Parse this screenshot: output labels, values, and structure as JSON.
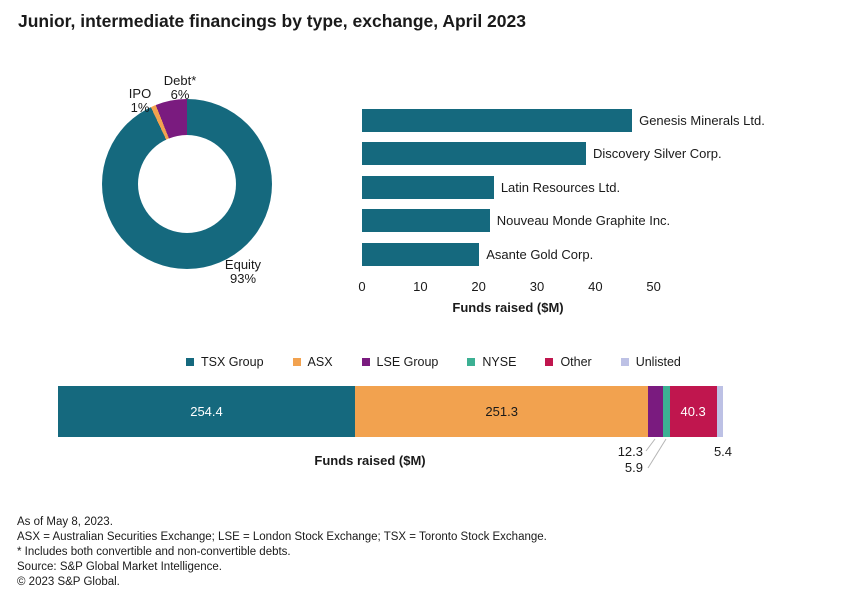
{
  "title": "Junior, intermediate financings by type, exchange, April 2023",
  "colors": {
    "teal": "#15697e",
    "orange": "#f2a24f",
    "purple": "#7a1b7f",
    "green": "#3cb093",
    "crimson": "#c0164e",
    "lavender": "#bdc1e5",
    "text": "#1a1a1a",
    "leader": "#b5b5b5"
  },
  "chart_data": [
    {
      "name": "financings-by-type-donut",
      "type": "pie",
      "subtype": "donut",
      "slices": [
        {
          "label": "Equity",
          "pct": 93,
          "pct_label": "93%",
          "color_key": "teal"
        },
        {
          "label": "IPO",
          "pct": 1,
          "pct_label": "1%",
          "color_key": "orange"
        },
        {
          "label": "Debt*",
          "pct": 6,
          "pct_label": "6%",
          "color_key": "purple"
        }
      ]
    },
    {
      "name": "top-financings-bar",
      "type": "bar",
      "orientation": "horizontal",
      "categories": [
        "Genesis Minerals Ltd.",
        "Discovery Silver Corp.",
        "Latin Resources Ltd.",
        "Nouveau Monde Graphite Inc.",
        "Asante Gold Corp."
      ],
      "values": [
        46.3,
        38.4,
        22.6,
        21.9,
        20.1
      ],
      "bar_color_key": "teal",
      "xticks": [
        0,
        10,
        20,
        30,
        40,
        50
      ],
      "xlim": [
        0,
        55
      ],
      "xlabel": "Funds raised ($M)",
      "grid": false
    },
    {
      "name": "financings-by-exchange-stacked-bar",
      "type": "bar",
      "subtype": "stacked-horizontal",
      "series": [
        {
          "name": "TSX Group",
          "value": 254.4,
          "value_label": "254.4",
          "color_key": "teal",
          "label_placement": "inside",
          "label_color": "#ffffff"
        },
        {
          "name": "ASX",
          "value": 251.3,
          "value_label": "251.3",
          "color_key": "orange",
          "label_placement": "inside",
          "label_color": "#1a1a1a"
        },
        {
          "name": "LSE Group",
          "value": 12.3,
          "value_label": "12.3",
          "color_key": "purple",
          "label_placement": "below-leader"
        },
        {
          "name": "NYSE",
          "value": 5.9,
          "value_label": "5.9",
          "color_key": "green",
          "label_placement": "below-leader"
        },
        {
          "name": "Other",
          "value": 40.3,
          "value_label": "40.3",
          "color_key": "crimson",
          "label_placement": "inside",
          "label_color": "#ffffff"
        },
        {
          "name": "Unlisted",
          "value": 5.4,
          "value_label": "5.4",
          "color_key": "lavender",
          "label_placement": "below"
        }
      ],
      "xlabel": "Funds raised ($M)",
      "legend_position": "top"
    }
  ],
  "footer": {
    "lines": [
      "As of May 8, 2023.",
      "ASX = Australian Securities Exchange; LSE = London Stock Exchange; TSX = Toronto Stock Exchange.",
      "* Includes both convertible and non-convertible debts.",
      "Source: S&P Global Market Intelligence.",
      "© 2023 S&P Global."
    ]
  }
}
